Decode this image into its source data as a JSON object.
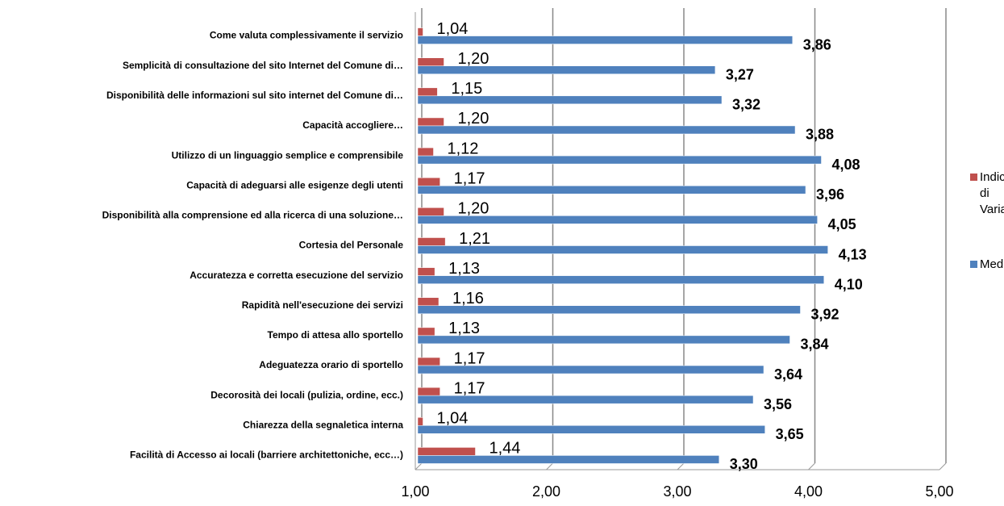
{
  "chart_data": {
    "type": "bar",
    "orientation": "horizontal",
    "categories": [
      "Come valuta complessivamente il servizio",
      "Semplicità di consultazione del sito Internet del Comune di…",
      "Disponibilità delle informazioni sul sito internet del Comune di…",
      "Capacità accogliere…",
      "Utilizzo di un linguaggio semplice e comprensibile",
      "Capacità di adeguarsi alle esigenze degli utenti",
      "Disponibilità alla comprensione ed alla ricerca di una soluzione…",
      "Cortesia del Personale",
      "Accuratezza e corretta esecuzione del servizio",
      "Rapidità nell'esecuzione dei servizi",
      "Tempo di attesa allo sportello",
      "Adeguatezza orario di sportello",
      "Decorosità dei locali (pulizia, ordine, ecc.)",
      "Chiarezza della segnaletica interna",
      "Facilità  di Accesso ai locali (barriere  architettoniche,  ecc…)"
    ],
    "series": [
      {
        "name": "Indice di Variabilità",
        "color": "#c0504d",
        "values": [
          1.04,
          1.2,
          1.15,
          1.2,
          1.12,
          1.17,
          1.2,
          1.21,
          1.13,
          1.16,
          1.13,
          1.17,
          1.17,
          1.04,
          1.44
        ],
        "value_labels": [
          "1,04",
          "1,20",
          "1,15",
          "1,20",
          "1,12",
          "1,17",
          "1,20",
          "1,21",
          "1,13",
          "1,16",
          "1,13",
          "1,17",
          "1,17",
          "1,04",
          "1,44"
        ]
      },
      {
        "name": "Media",
        "color": "#4f81bd",
        "values": [
          3.86,
          3.27,
          3.32,
          3.88,
          4.08,
          3.96,
          4.05,
          4.13,
          4.1,
          3.92,
          3.84,
          3.64,
          3.56,
          3.65,
          3.3
        ],
        "value_labels": [
          "3,86",
          "3,27",
          "3,32",
          "3,88",
          "4,08",
          "3,96",
          "4,05",
          "4,13",
          "4,10",
          "3,92",
          "3,84",
          "3,64",
          "3,56",
          "3,65",
          "3,30"
        ]
      }
    ],
    "xlim": [
      1,
      5
    ],
    "xticks": [
      {
        "value": 1,
        "label": "1,00"
      },
      {
        "value": 2,
        "label": "2,00"
      },
      {
        "value": 3,
        "label": "3,00"
      },
      {
        "value": 4,
        "label": "4,00"
      },
      {
        "value": 5,
        "label": "5,00"
      }
    ],
    "grid": true,
    "legend": "right"
  }
}
